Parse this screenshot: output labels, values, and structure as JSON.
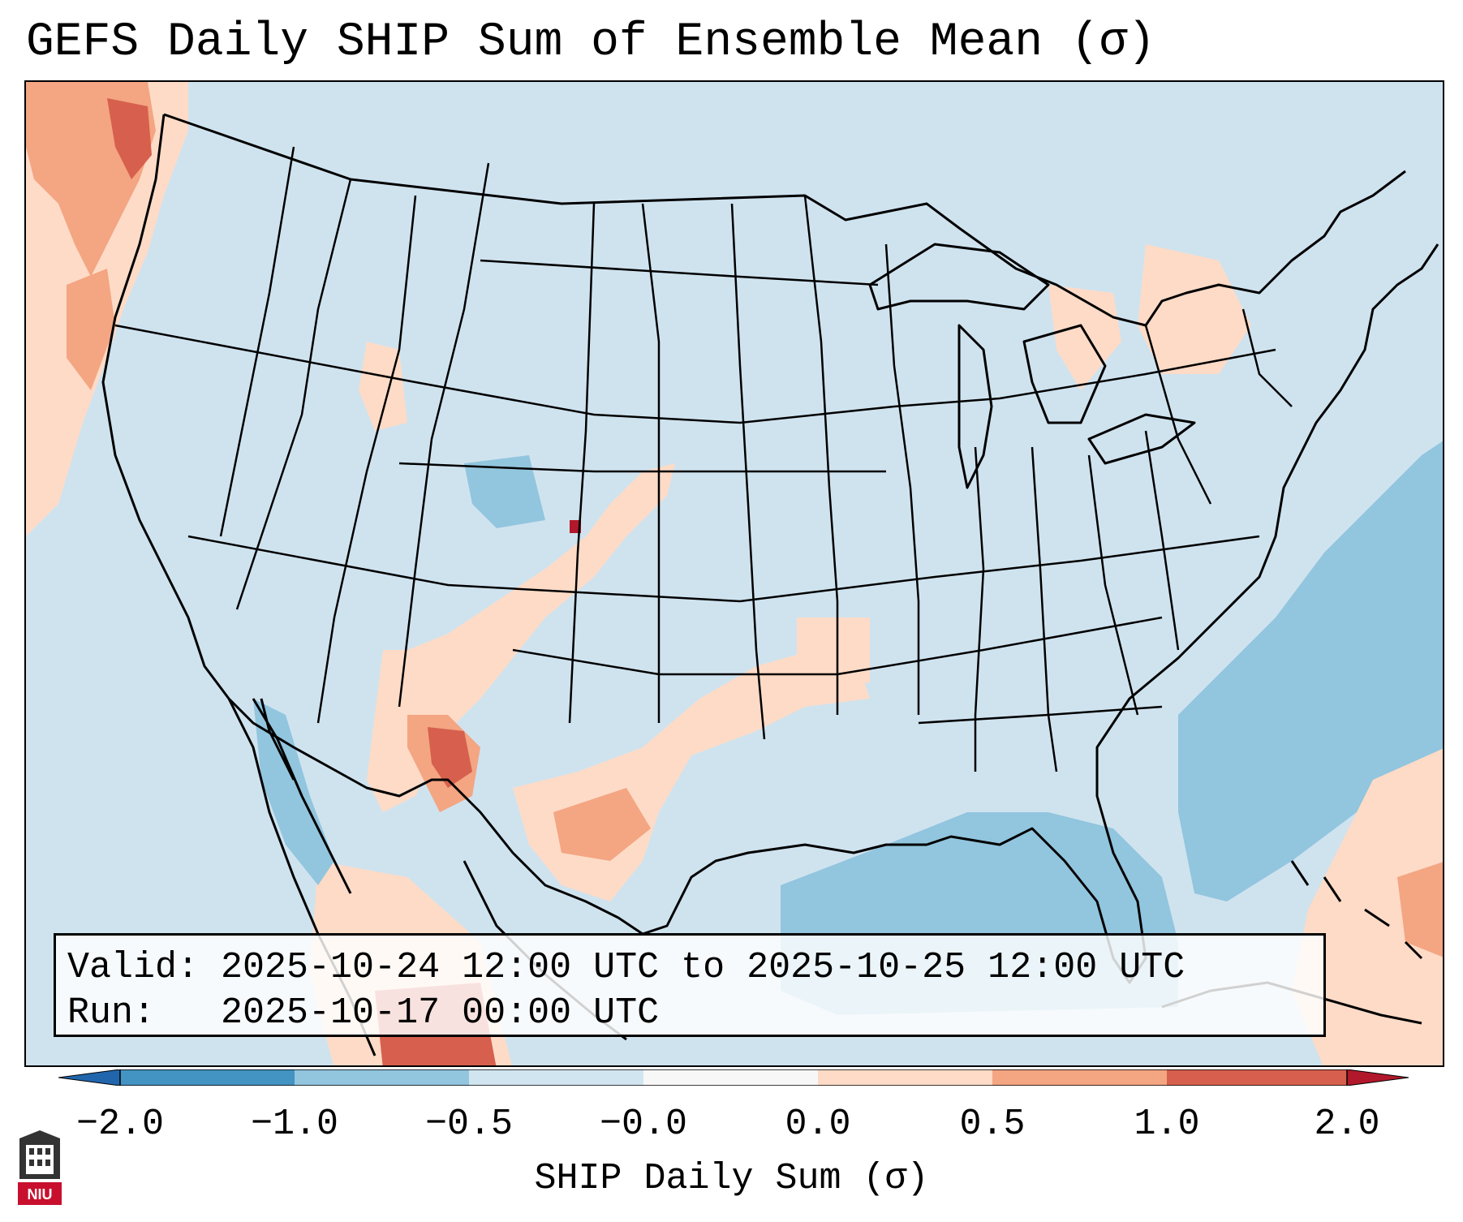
{
  "title": "GEFS Daily SHIP Sum of Ensemble Mean (σ)",
  "info": {
    "valid_line": "Valid: 2025-10-24 12:00 UTC to 2025-10-25 12:00 UTC",
    "run_line": "Run:   2025-10-17 00:00 UTC"
  },
  "colorbar": {
    "label": "SHIP Daily Sum (σ)",
    "ticks": [
      "−2.0",
      "−1.0",
      "−0.5",
      "−0.0",
      "0.0",
      "0.5",
      "1.0",
      "2.0"
    ],
    "colors": [
      "#4a8ec6",
      "#92c5de",
      "#d1e5f0",
      "#f7f7f7",
      "#fddbc7",
      "#f4a582",
      "#d6604d",
      "#b2182b"
    ]
  },
  "map": {
    "background_color": "#cfe3ef",
    "region": "Continental United States"
  },
  "logo": {
    "text": "NIU",
    "icon": "niu-logo-icon"
  }
}
